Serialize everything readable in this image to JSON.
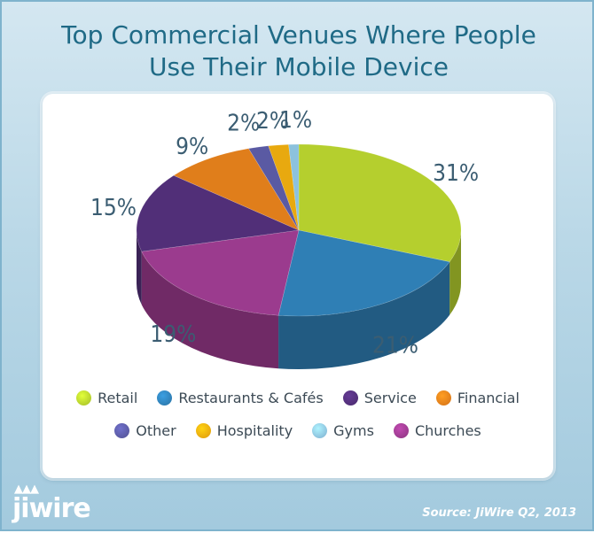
{
  "title_line1": "Top Commercial Venues Where People",
  "title_line2": "Use Their Mobile Device",
  "source": "Source: JiWire Q2, 2013",
  "logo_text": "jiwire",
  "chart_data": {
    "type": "pie",
    "title": "Top Commercial Venues Where People Use Their Mobile Device",
    "slices": [
      {
        "label": "Retail",
        "value": 31,
        "value_label": "31%",
        "color": "#b5cf2e"
      },
      {
        "label": "Restaurants & Cafés",
        "value": 21,
        "value_label": "21%",
        "color": "#2f7fb5"
      },
      {
        "label": "Churches",
        "value": 19,
        "value_label": "19%",
        "color": "#9b3b8e"
      },
      {
        "label": "Service",
        "value": 15,
        "value_label": "15%",
        "color": "#512f78"
      },
      {
        "label": "Financial",
        "value": 9,
        "value_label": "9%",
        "color": "#e07e1b"
      },
      {
        "label": "Other",
        "value": 2,
        "value_label": "2%",
        "color": "#5a5aa3"
      },
      {
        "label": "Hospitality",
        "value": 2,
        "value_label": "2%",
        "color": "#e8a90f"
      },
      {
        "label": "Gyms",
        "value": 1,
        "value_label": "1%",
        "color": "#8cc2dd"
      }
    ],
    "legend": {
      "placement": "bottom",
      "rows": [
        [
          "Retail",
          "Restaurants & Cafés",
          "Service",
          "Financial"
        ],
        [
          "Other",
          "Hospitality",
          "Gyms",
          "Churches"
        ]
      ]
    }
  }
}
